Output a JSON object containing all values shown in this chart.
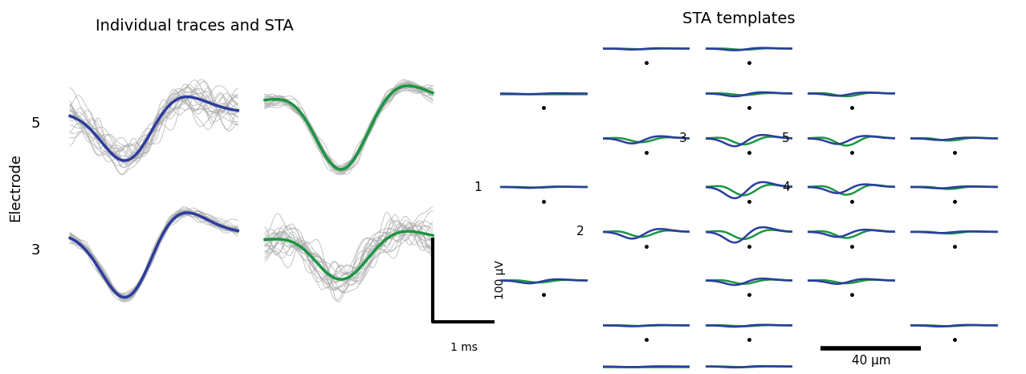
{
  "title_left": "Individual traces and STA",
  "title_right": "STA templates",
  "electrode_label": "Electrode",
  "electrode_5_label": "5",
  "electrode_3_label": "3",
  "scale_bar_x": "1 ms",
  "scale_bar_y": "100 μV",
  "scale_bar_right": "40 μm",
  "neuron_labels": [
    "1",
    "2",
    "3",
    "4",
    "5"
  ],
  "blue_color": "#2b3d9e",
  "green_color": "#1a9641",
  "gray_color": "#aaaaaa",
  "black_color": "#000000",
  "bg_color": "#ffffff"
}
